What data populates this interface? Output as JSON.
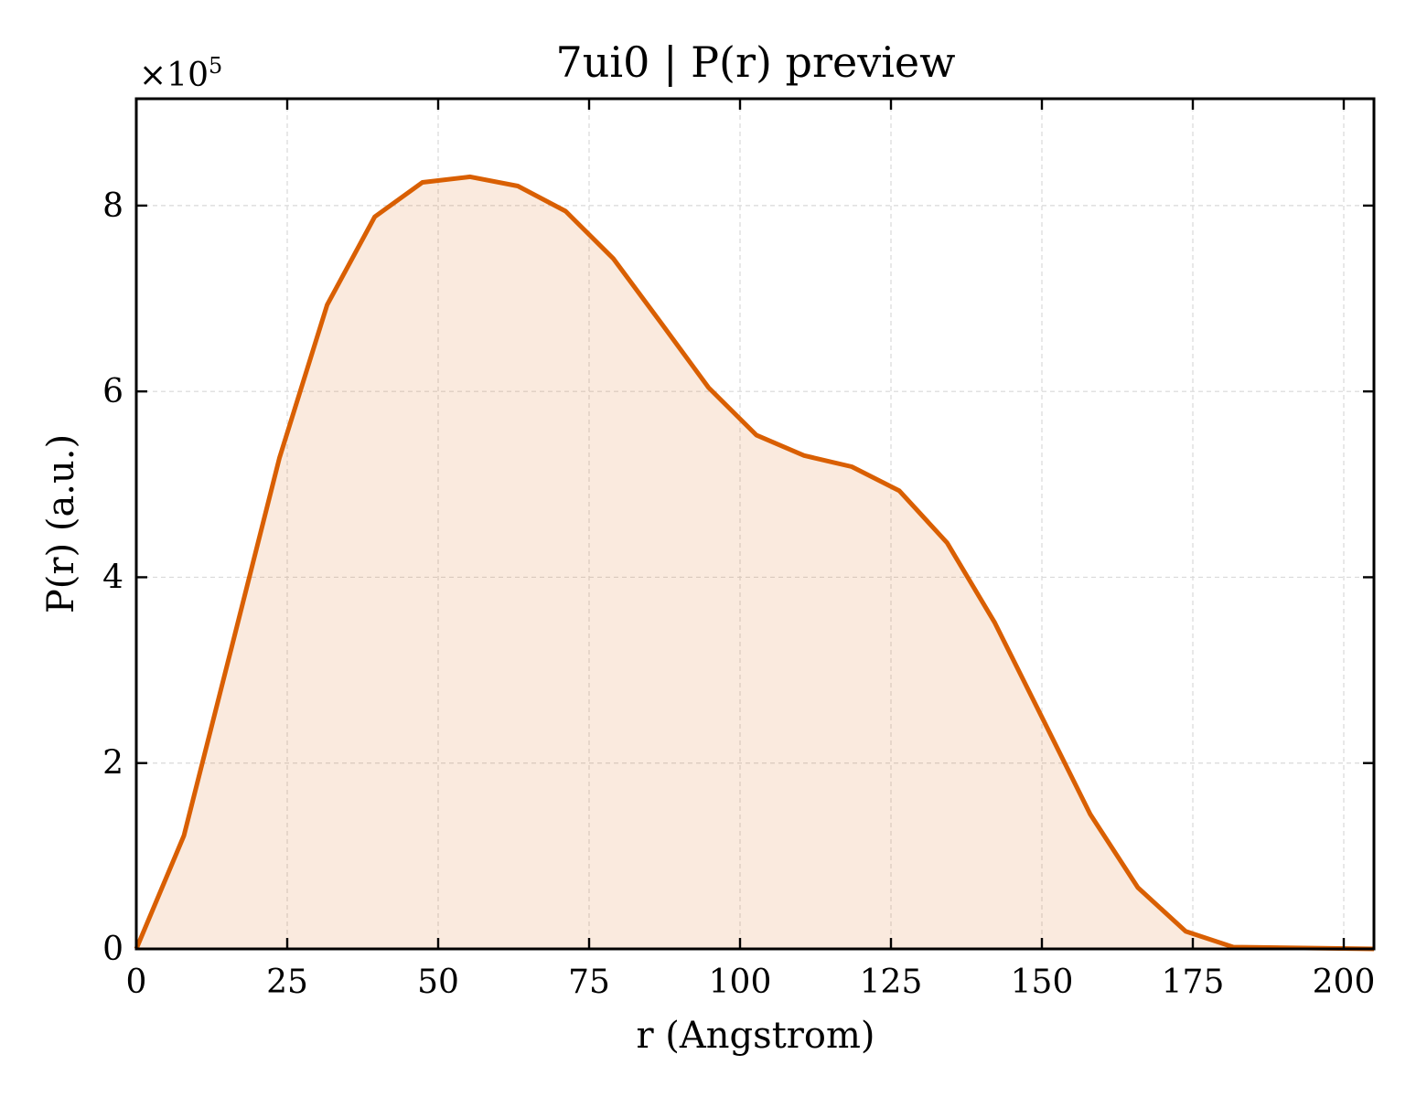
{
  "chart_data": {
    "type": "area",
    "title": "7ui0 | P(r) preview",
    "xlabel": "r (Angstrom)",
    "ylabel": "P(r) (a.u.)",
    "y_offset_label": {
      "base": "×10",
      "exponent": "5"
    },
    "xlim": [
      0,
      205
    ],
    "ylim": [
      0,
      9.15
    ],
    "x_ticks": [
      0,
      25,
      50,
      75,
      100,
      125,
      150,
      175,
      200
    ],
    "y_ticks": [
      0,
      2,
      4,
      6,
      8
    ],
    "grid": true,
    "tick_direction": "in",
    "colors": {
      "line": "#d95f02",
      "fill": "#d95f02",
      "fill_opacity": 0.13
    },
    "series": [
      {
        "x": [
          0,
          7.9,
          15.8,
          23.7,
          31.6,
          39.5,
          47.4,
          55.3,
          63.2,
          71.1,
          79.0,
          86.9,
          94.8,
          102.7,
          110.6,
          118.5,
          126.4,
          134.3,
          142.2,
          150.1,
          158.0,
          165.9,
          173.8,
          181.7,
          205
        ],
        "y": [
          0,
          1.22,
          3.25,
          5.28,
          6.93,
          7.88,
          8.25,
          8.31,
          8.21,
          7.94,
          7.43,
          6.74,
          6.04,
          5.53,
          5.31,
          5.19,
          4.93,
          4.37,
          3.51,
          2.48,
          1.45,
          0.66,
          0.19,
          0.02,
          0
        ]
      }
    ]
  }
}
